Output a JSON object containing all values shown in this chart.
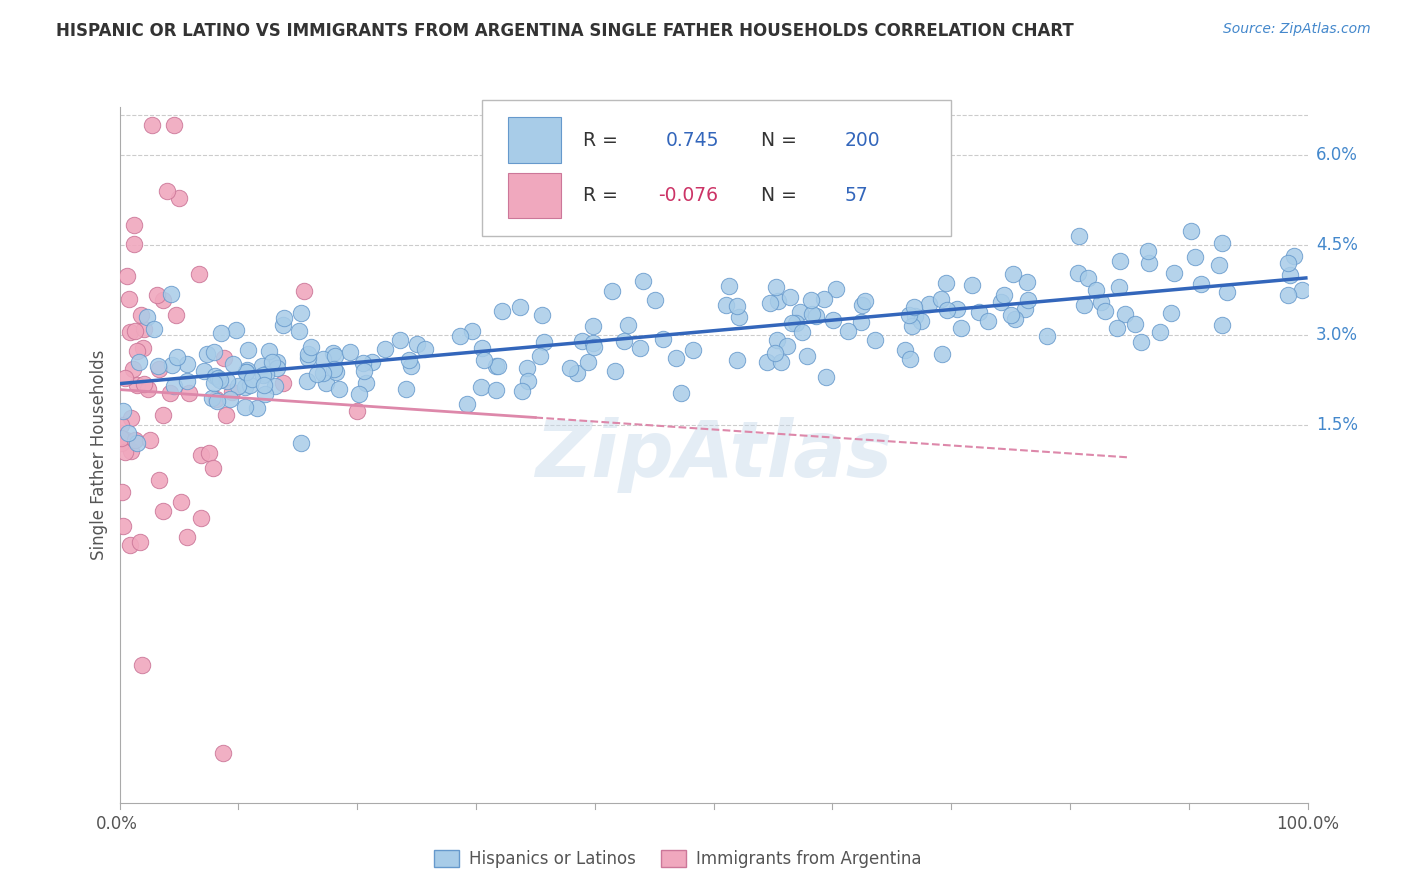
{
  "title": "HISPANIC OR LATINO VS IMMIGRANTS FROM ARGENTINA SINGLE FATHER HOUSEHOLDS CORRELATION CHART",
  "source_text": "Source: ZipAtlas.com",
  "ylabel": "Single Father Households",
  "ytick_labels": [
    "1.5%",
    "3.0%",
    "4.5%",
    "6.0%"
  ],
  "ytick_vals": [
    0.015,
    0.03,
    0.045,
    0.06
  ],
  "xtick_labels": [
    "0.0%",
    "100.0%"
  ],
  "blue_r": 0.745,
  "blue_n": 200,
  "pink_r": -0.076,
  "pink_n": 57,
  "watermark": "ZipAtlas",
  "background_color": "#ffffff",
  "grid_color": "#cccccc",
  "blue_dot_color": "#a8cce8",
  "blue_dot_edge": "#6699cc",
  "pink_dot_color": "#f0a8be",
  "pink_dot_edge": "#cc7799",
  "blue_line_color": "#3366bb",
  "pink_line_color": "#dd88aa",
  "tick_label_color": "#4488cc",
  "title_color": "#333333",
  "source_color": "#4488cc",
  "label_color": "#666666",
  "xlim": [
    0.0,
    1.0
  ],
  "ylim": [
    -0.048,
    0.068
  ],
  "legend_r1": "0.745",
  "legend_n1": "200",
  "legend_r2": "-0.076",
  "legend_n2": "57",
  "bottom_legend_1": "Hispanics or Latinos",
  "bottom_legend_2": "Immigrants from Argentina"
}
